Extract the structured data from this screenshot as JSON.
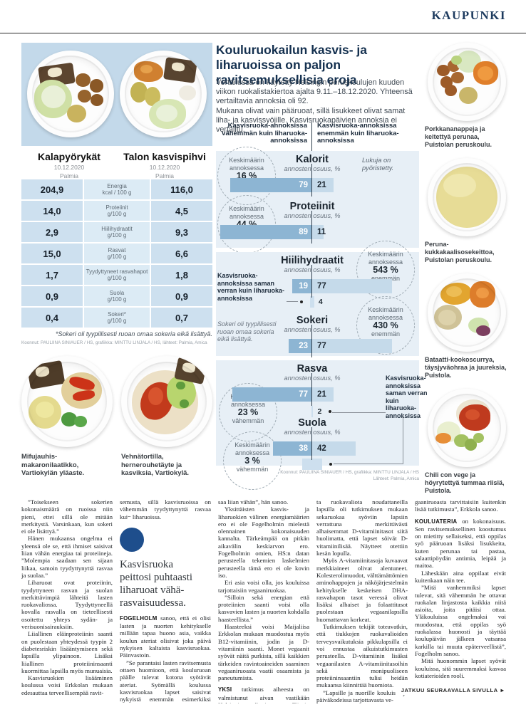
{
  "page": {
    "section": "KAUPUNKI"
  },
  "dish_compare": {
    "dishes": [
      {
        "title": "Kalapyörykät",
        "date": "10.12.2020",
        "source": "Palmia"
      },
      {
        "title": "Talon kasvispihvi",
        "date": "10.12.2020",
        "source": "Palmia"
      }
    ]
  },
  "nutrition": {
    "rows": [
      {
        "left": "204,9",
        "name": "Energia",
        "unit": "kcal / 100 g",
        "right": "116,0"
      },
      {
        "left": "14,0",
        "name": "Proteiinit",
        "unit": "g/100 g",
        "right": "4,5"
      },
      {
        "left": "2,9",
        "name": "Hiilihydraatit",
        "unit": "g/100 g",
        "right": "9,3"
      },
      {
        "left": "15,0",
        "name": "Rasvat",
        "unit": "g/100 g",
        "right": "6,6"
      },
      {
        "left": "1,7",
        "name": "Tyydyttyneet rasvahapot",
        "unit": "g/100 g",
        "right": "1,8"
      },
      {
        "left": "0,9",
        "name": "Suola",
        "unit": "g/100 g",
        "right": "0,9"
      },
      {
        "left": "0,4",
        "name": "Sokeri*",
        "unit": "g/100 g",
        "right": "0,7"
      }
    ],
    "footnote": "*Sokeri oli tyypillisesti ruoan omaa sokeria eikä lisättyä.",
    "credit": "Koonnut: PAULIINA SINIAUER / HS, grafiikka: MINTTU LINJALA / HS, lähteet: Palmia, Amica"
  },
  "left_photos": [
    {
      "caption": "Mifujauhis-makaronilaatikko, Vartiokylän yläaste."
    },
    {
      "caption": "Vehnätortilla, hernerouhetäyte ja kasviksia, Vartiokylä."
    }
  ],
  "infographic": {
    "title": "Kouluruokailun kasvis- ja liharuoissa on paljon ravitsemuksellisia eroja",
    "intro1": "Vertailussa on käytetty Helsingin peruskoulujen kuuden viikon ruokalistakiertoa ajalta 9.11.–18.12.2020. Yhteensä vertailtavia annoksia oli 92.",
    "intro2": "Mukana olivat vain pääruoat, sillä lisukkeet olivat samat liha- ja kasvissyöjille. Kasvisruokapäivien annoksia ei vertailtu.",
    "credit1": "Koonnut: PAULIINA SINIAUER / HS, grafiikka: MINTTU LINJALA / HS",
    "credit2": "Lähteet: Palmia, Amica"
  },
  "chart_data": {
    "type": "bar",
    "title": "Kouluruokailun kasvis- ja liharuoissa on paljon ravitsemuksellisia eroja",
    "unit_label": "annosten osuus, %",
    "avg_prefix": "Keskimäärin annoksessa",
    "header_left": "Kasvisruoka-annoksissa vähemmän kuin liharuoka-annoksissa",
    "header_right": "Kasvisruoka-annoksissa enemmän kuin liharuoka-annoksissa",
    "rounding_note": "Lukuja on pyöristetty.",
    "same_label": "Kasvisruoka-annoksissa saman verran kuin liharuoka-annoksissa",
    "legend": {
      "less_color": "#8db5d3",
      "more_color": "#c5daea"
    },
    "sections": [
      {
        "name": "Kalorit",
        "less": 79,
        "more": 21,
        "same": null,
        "avg_value": "16 %",
        "avg_suffix": "vähemmän"
      },
      {
        "name": "Proteiinit",
        "less": 89,
        "more": 11,
        "same": null,
        "avg_value": "44 %",
        "avg_suffix": "vähemmän"
      },
      {
        "name": "Hiilihydraatit",
        "less": 19,
        "more": 77,
        "same": 4,
        "avg_value": "543 %",
        "avg_suffix": "enemmän"
      },
      {
        "name": "Sokeri",
        "less": 23,
        "more": 77,
        "same": null,
        "avg_value": "430 %",
        "avg_suffix": "enemmän",
        "note": "Sokeri oli tyypillisesti ruoan omaa sokeria eikä lisättyä."
      },
      {
        "name": "Rasva",
        "less": 77,
        "more": 21,
        "same": 2,
        "avg_value": "23 %",
        "avg_suffix": "vähemmän"
      },
      {
        "name": "Suola",
        "less": 38,
        "more": 42,
        "same": 19,
        "avg_value": "3 %",
        "avg_suffix": "vähemmän"
      }
    ]
  },
  "right_photos": [
    {
      "caption": "Porkkananappeja ja keitettyä perunaa, Puistolan peruskoulu."
    },
    {
      "caption": "Peruna-kukkakaalisosekeittoa, Puistolan peruskoulu."
    },
    {
      "caption": "Bataatti-kookoscurrya, täysjyväohraa ja juureksia, Puistola."
    },
    {
      "caption": "Chili con vege ja höyrytettyä tummaa riisiä, Puistola."
    }
  ],
  "article": {
    "pullquote": "Kasvisruoka\npeittosi puhtaasti\nliharuoat vähä-\nrasvaisuudessa.",
    "continues": "JATKUU SEURAAVALLA SIVULLA",
    "columns": [
      [
        {
          "text": "”Toisekseen sokerien kokonaismäärä on ruoissa niin pieni, ettei sillä ole mitään merkitystä. Varsinkaan, kun sokeri ei ole lisättyä.”",
          "indent": true
        },
        {
          "text": "Hänen mukaansa ongelma ei yleensä ole se, että ihmiset saisivat liian vähän energiaa tai proteiineja. ”Molempia saadaan sen sijaan liikaa, samoin tyydyttynyttä rasvaa ja suolaa.”",
          "indent": true
        },
        {
          "text": "Liharuoat ovat proteiinin, tyydyttyneen rasvan ja suolan merkittävimpiä lähteitä lasten ruokavaliossa. Tyydyttyneellä kovalla rasvalla on tieteellisesti osoitettu yhteys sydän- ja verisuonisairauksiin.",
          "indent": true
        },
        {
          "text": "Liiallinen eläinproteiinin saanti on puolestaan yhteydessä tyypin 2 diabetesriskin lisääntymiseen sekä lapsilla ylipainoon. Lisäksi liiallinen proteiininsaanti kuormittaa lapsilla myös munuaisia.",
          "indent": true
        },
        {
          "text": "Kasvisruokien lisääminen koulussa voisi Erkkolan mukaan edesauttaa terveellisempää ravit-",
          "indent": true
        }
      ],
      [
        {
          "text": "semusta, sillä kasvisruoissa on vähemmän tyydyttynyttä rasvaa kuin liharuoissa.",
          "indent": false
        },
        {
          "pullquote": true
        },
        {
          "lead": "Fogelholm",
          "text": " sanoo, että ei olisi lasten ja nuorten kehitykselle millään tapaa huono asia, vaikka koulun ateriat olisivat joka päivä nykyisen kaltaista kasvisruokaa. Päinvastoin.",
          "indent": false
        },
        {
          "text": "”Se parantaisi lasten ravitsemusta ottaen huomioon, että kouluruoan päälle tulevat kotona syötävät ateriat. Syömällä koulussa kasvisruokaa lapset saisivat nykyistä enemmän esimerkiksi kuitua, jota moni suomalainen",
          "indent": true
        }
      ],
      [
        {
          "text": "saa liian vähän”, hän sanoo.",
          "indent": false
        },
        {
          "text": "Yksittäisten kasvis- ja liharuokien välinen energiamäärien ero ei ole Fogelholmin mielestä olennainen kokonaisuuden kannalta. Tärkeämpää on pitkän aikavälin keskiarvon ero. Fogelholmin omien, HS:n datan perusteella tekemien laskelmien perusteella tämä ero ei ole kovin iso.",
          "indent": true
        },
        {
          "text": "Eri asia voisi olla, jos kouluissa tarjottaisiin vegaaniruokaa.",
          "indent": true
        },
        {
          "text": "”Silloin sekä energian että proteiinien saanti voisi olla kasvavien lasten ja nuorten kohdalla haasteellista.”",
          "indent": true
        },
        {
          "text": "Haasteeksi voisi Maijaliisa Erkkolan mukaan muodostua myös B12-vitamiinin, jodin ja D-vitamiinin saanti. Monet vegaanit syövät näitä purkista, sillä kaikkien tärkeiden ravintoaineiden saaminen vegaaniruoasta vaatii osaamista ja paneutumista.",
          "indent": true
        },
        {
          "lead": "Yksi",
          "text": " tutkimus aiheesta on valmistunut aivan vastikään Helsingin yliopistossa. Täysin vegaanis-",
          "indent": false
        }
      ],
      [
        {
          "text": "ta ruokavaliota noudattaneilla lapsilla oli tutkimuksen mukaan sekaruokaa syöviin lapsiin verrattuna merkittävästi alhaisemmat D-vitamiinitasot siitä huolimatta, että lapset söivät D-vitamiinilisää. Näytteet otettiin kesän lopulla.",
          "indent": false
        },
        {
          "text": "Myös A-vitamiinitasoja kuvaavat merkkiaineet olivat alentuneet. Kolesterolimuodot, välttämättömien aminohappojen ja näköjärjestelmän kehitykselle keskeisen DHA-rasvahapon tasot veressä olivat lisäksi alhaiset ja folaattitasot puolestaan vegaanilapsilla huomattavan korkeat.",
          "indent": true
        },
        {
          "text": "Tutkimuksen tekijät toteavatkin, että tiukkojen ruokavalioiden terveysvaikutuksia pikkulapsilla ei voi ennustaa aikuistutkimusten perusteella. D-vitamiinin lisäksi vegaanilasten A-vitamiinitasoihin sekä monipuoliseen proteiininsaantiin tulisi heidän mukaansa kiinnittää huomiota.",
          "indent": true
        },
        {
          "text": "”Lapsille ja nuorille kouluissa ja päiväkodeissa tarjottavasta ve-",
          "indent": true
        }
      ],
      [
        {
          "text": "gaaniruoasta tarvittaisiin kuitenkin lisää tutkimusta”, Erkkola sanoo.",
          "indent": false
        },
        {
          "lead": "Kouluateria",
          "text": " on kokonaisuus. Sen ravitsemuksellinen koostumus on mietitty sellaiseksi, että oppilas syö pääruoan lisäksi lisukkeita, kuten perunaa tai pastaa, salaattipöydän antimia, leipää ja maitoa.",
          "indent": false
        },
        {
          "text": "Läheskään aina oppilaat eivät kuitenkaan näin tee.",
          "indent": true
        },
        {
          "text": "”Mitä vanhemmiksi lapset tulevat, sitä vähemmän he ottavat ruokalan linjastosta kaikkia niitä asioita, joita pitäisi ottaa. Yläkouluissa ongelmaksi voi muodostua, että oppilas syö ruokalassa huonosti ja täyttää koulupäivän jälkeen vatsansa karkilla tai muuta epäterveellistä”, Fogelholm sanoo.",
          "indent": true
        },
        {
          "text": "Mitä huonommin lapset syövät kouluissa, sitä suuremmaksi kasvaa kotiaterioiden rooli.",
          "indent": true
        }
      ]
    ]
  }
}
